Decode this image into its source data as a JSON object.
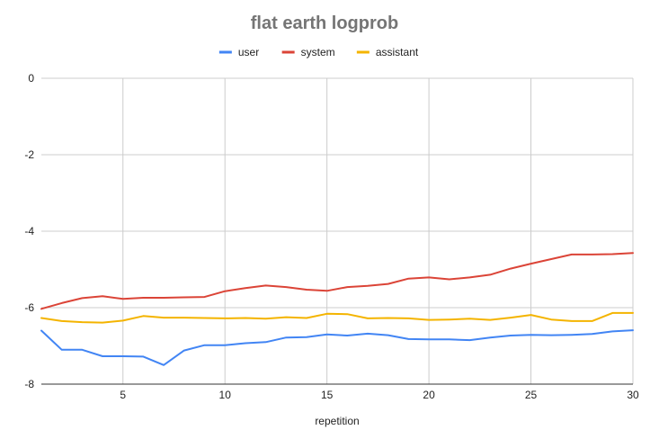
{
  "chart_data": {
    "type": "line",
    "title": "flat earth logprob",
    "xlabel": "repetition",
    "ylabel": "",
    "xlim": [
      1,
      30
    ],
    "ylim": [
      -8,
      0
    ],
    "xticks": [
      5,
      10,
      15,
      20,
      25,
      30
    ],
    "yticks": [
      0,
      -2,
      -4,
      -6,
      -8
    ],
    "grid": true,
    "legend_position": "top",
    "x": [
      1,
      2,
      3,
      4,
      5,
      6,
      7,
      8,
      9,
      10,
      11,
      12,
      13,
      14,
      15,
      16,
      17,
      18,
      19,
      20,
      21,
      22,
      23,
      24,
      25,
      26,
      27,
      28,
      29,
      30
    ],
    "series": [
      {
        "name": "user",
        "color": "#4285f4",
        "values": [
          -6.6,
          -7.1,
          -7.1,
          -7.27,
          -7.27,
          -7.28,
          -7.5,
          -7.12,
          -6.98,
          -6.98,
          -6.93,
          -6.9,
          -6.78,
          -6.77,
          -6.7,
          -6.73,
          -6.68,
          -6.72,
          -6.82,
          -6.83,
          -6.83,
          -6.85,
          -6.78,
          -6.73,
          -6.71,
          -6.72,
          -6.71,
          -6.69,
          -6.62,
          -6.59
        ]
      },
      {
        "name": "system",
        "color": "#db4437",
        "values": [
          -6.03,
          -5.88,
          -5.75,
          -5.7,
          -5.77,
          -5.74,
          -5.74,
          -5.73,
          -5.72,
          -5.57,
          -5.49,
          -5.42,
          -5.46,
          -5.53,
          -5.56,
          -5.46,
          -5.43,
          -5.38,
          -5.24,
          -5.21,
          -5.26,
          -5.21,
          -5.14,
          -4.98,
          -4.85,
          -4.73,
          -4.61,
          -4.61,
          -4.6,
          -4.57
        ]
      },
      {
        "name": "assistant",
        "color": "#f4b400",
        "values": [
          -6.27,
          -6.35,
          -6.38,
          -6.39,
          -6.34,
          -6.22,
          -6.26,
          -6.26,
          -6.27,
          -6.28,
          -6.27,
          -6.29,
          -6.25,
          -6.27,
          -6.16,
          -6.17,
          -6.28,
          -6.27,
          -6.28,
          -6.32,
          -6.31,
          -6.29,
          -6.32,
          -6.26,
          -6.19,
          -6.31,
          -6.35,
          -6.35,
          -6.14,
          -6.14
        ]
      }
    ]
  }
}
